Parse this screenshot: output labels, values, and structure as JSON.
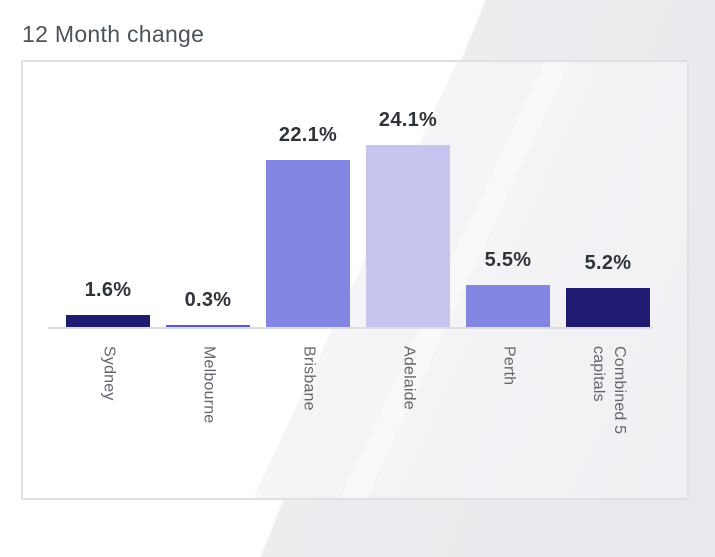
{
  "page": {
    "title": "12 Month change"
  },
  "chart_data": {
    "type": "bar",
    "title": "12 Month change",
    "orientation": "vertical",
    "categories": [
      "Sydney",
      "Melbourne",
      "Brisbane",
      "Adelaide",
      "Perth",
      "Combined 5 capitals"
    ],
    "values": [
      1.6,
      0.3,
      22.1,
      24.1,
      5.5,
      5.2
    ],
    "value_labels": [
      "1.6%",
      "0.3%",
      "22.1%",
      "24.1%",
      "5.5%",
      "5.2%"
    ],
    "bar_colors": [
      "#1e1b70",
      "#5559d2",
      "#8285e2",
      "#c6c5f0",
      "#8285e2",
      "#1e1b70"
    ],
    "xlabel": "",
    "ylabel": "",
    "ylim": [
      0,
      26
    ],
    "grid": false,
    "legend": false,
    "x_tick_rotation_deg": 90,
    "category_label_position": "below-axis"
  },
  "colors": {
    "title_text": "#4c535b",
    "value_label_text": "#2f343a",
    "category_label_text": "#63676c",
    "card_border": "#dfdfe4",
    "axis_line": "#dcdce1",
    "card_background": "#ffffff",
    "card_sheen": "#f5f5f7",
    "page_background_tint": "#ededf0"
  }
}
